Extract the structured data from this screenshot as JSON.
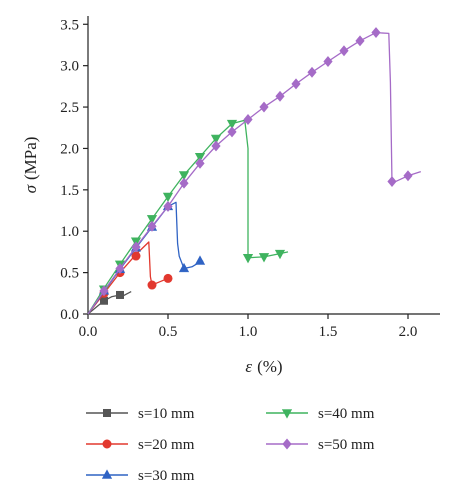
{
  "chart_data": {
    "type": "line",
    "xlabel": {
      "symbol": "ε",
      "unit": "(%)"
    },
    "ylabel": {
      "symbol": "σ",
      "unit": "(MPa)"
    },
    "xlim": [
      0.0,
      2.2
    ],
    "ylim": [
      0.0,
      3.6
    ],
    "x_ticks": [
      0.0,
      0.5,
      1.0,
      1.5,
      2.0
    ],
    "x_tick_labels": [
      "0.0",
      "0.5",
      "1.0",
      "1.5",
      "2.0"
    ],
    "y_ticks": [
      0.0,
      0.5,
      1.0,
      1.5,
      2.0,
      2.5,
      3.0,
      3.5
    ],
    "y_tick_labels": [
      "0.0",
      "0.5",
      "1.0",
      "1.5",
      "2.0",
      "2.5",
      "3.0",
      "3.5"
    ],
    "grid": false,
    "legend_position": "bottom",
    "series": [
      {
        "name": "s=10 mm",
        "color": "#555555",
        "marker": "square",
        "line": [
          [
            0,
            0
          ],
          [
            0.05,
            0.08
          ],
          [
            0.1,
            0.16
          ],
          [
            0.15,
            0.21
          ],
          [
            0.2,
            0.23
          ],
          [
            0.22,
            0.22
          ],
          [
            0.27,
            0.27
          ]
        ],
        "markers": [
          [
            0.1,
            0.16
          ],
          [
            0.2,
            0.23
          ]
        ]
      },
      {
        "name": "s=20 mm",
        "color": "#e2382e",
        "marker": "circle",
        "line": [
          [
            0,
            0
          ],
          [
            0.1,
            0.25
          ],
          [
            0.2,
            0.5
          ],
          [
            0.3,
            0.72
          ],
          [
            0.38,
            0.87
          ],
          [
            0.39,
            0.45
          ],
          [
            0.4,
            0.35
          ],
          [
            0.45,
            0.39
          ],
          [
            0.5,
            0.43
          ]
        ],
        "markers": [
          [
            0.1,
            0.25
          ],
          [
            0.2,
            0.5
          ],
          [
            0.3,
            0.7
          ],
          [
            0.4,
            0.35
          ],
          [
            0.5,
            0.43
          ]
        ]
      },
      {
        "name": "s=30 mm",
        "color": "#2f63c4",
        "marker": "triangle-up",
        "line": [
          [
            0,
            0
          ],
          [
            0.1,
            0.27
          ],
          [
            0.2,
            0.54
          ],
          [
            0.3,
            0.8
          ],
          [
            0.4,
            1.05
          ],
          [
            0.5,
            1.3
          ],
          [
            0.55,
            1.35
          ],
          [
            0.56,
            0.85
          ],
          [
            0.57,
            0.7
          ],
          [
            0.6,
            0.55
          ],
          [
            0.65,
            0.57
          ],
          [
            0.7,
            0.63
          ],
          [
            0.72,
            0.64
          ]
        ],
        "markers": [
          [
            0.1,
            0.28
          ],
          [
            0.2,
            0.54
          ],
          [
            0.3,
            0.8
          ],
          [
            0.4,
            1.05
          ],
          [
            0.5,
            1.3
          ],
          [
            0.6,
            0.55
          ],
          [
            0.7,
            0.64
          ]
        ]
      },
      {
        "name": "s=40 mm",
        "color": "#3fb35f",
        "marker": "triangle-down",
        "line": [
          [
            0,
            0
          ],
          [
            0.1,
            0.31
          ],
          [
            0.2,
            0.6
          ],
          [
            0.3,
            0.88
          ],
          [
            0.4,
            1.15
          ],
          [
            0.5,
            1.42
          ],
          [
            0.6,
            1.68
          ],
          [
            0.7,
            1.9
          ],
          [
            0.8,
            2.12
          ],
          [
            0.9,
            2.3
          ],
          [
            0.98,
            2.34
          ],
          [
            1.0,
            2.0
          ],
          [
            1.0,
            0.68
          ],
          [
            1.1,
            0.69
          ],
          [
            1.2,
            0.73
          ],
          [
            1.25,
            0.75
          ]
        ],
        "markers": [
          [
            0.1,
            0.3
          ],
          [
            0.2,
            0.6
          ],
          [
            0.3,
            0.88
          ],
          [
            0.4,
            1.15
          ],
          [
            0.5,
            1.42
          ],
          [
            0.6,
            1.68
          ],
          [
            0.7,
            1.9
          ],
          [
            0.8,
            2.12
          ],
          [
            0.9,
            2.3
          ],
          [
            1.0,
            0.68
          ],
          [
            1.1,
            0.69
          ],
          [
            1.2,
            0.73
          ]
        ]
      },
      {
        "name": "s=50 mm",
        "color": "#a56bc7",
        "marker": "diamond",
        "line": [
          [
            0,
            0
          ],
          [
            0.1,
            0.28
          ],
          [
            0.2,
            0.55
          ],
          [
            0.3,
            0.81
          ],
          [
            0.4,
            1.06
          ],
          [
            0.5,
            1.3
          ],
          [
            0.6,
            1.58
          ],
          [
            0.7,
            1.82
          ],
          [
            0.8,
            2.03
          ],
          [
            0.9,
            2.2
          ],
          [
            1.0,
            2.35
          ],
          [
            1.1,
            2.5
          ],
          [
            1.2,
            2.63
          ],
          [
            1.3,
            2.78
          ],
          [
            1.4,
            2.92
          ],
          [
            1.5,
            3.05
          ],
          [
            1.6,
            3.18
          ],
          [
            1.7,
            3.3
          ],
          [
            1.8,
            3.4
          ],
          [
            1.88,
            3.39
          ],
          [
            1.89,
            2.8
          ],
          [
            1.9,
            1.58
          ],
          [
            2.0,
            1.67
          ],
          [
            2.08,
            1.72
          ]
        ],
        "markers": [
          [
            0.1,
            0.28
          ],
          [
            0.2,
            0.55
          ],
          [
            0.3,
            0.81
          ],
          [
            0.4,
            1.06
          ],
          [
            0.5,
            1.3
          ],
          [
            0.6,
            1.58
          ],
          [
            0.7,
            1.82
          ],
          [
            0.8,
            2.03
          ],
          [
            0.9,
            2.2
          ],
          [
            1.0,
            2.35
          ],
          [
            1.1,
            2.5
          ],
          [
            1.2,
            2.63
          ],
          [
            1.3,
            2.78
          ],
          [
            1.4,
            2.92
          ],
          [
            1.5,
            3.05
          ],
          [
            1.6,
            3.18
          ],
          [
            1.7,
            3.3
          ],
          [
            1.8,
            3.4
          ],
          [
            1.9,
            1.6
          ],
          [
            2.0,
            1.67
          ]
        ]
      }
    ]
  }
}
